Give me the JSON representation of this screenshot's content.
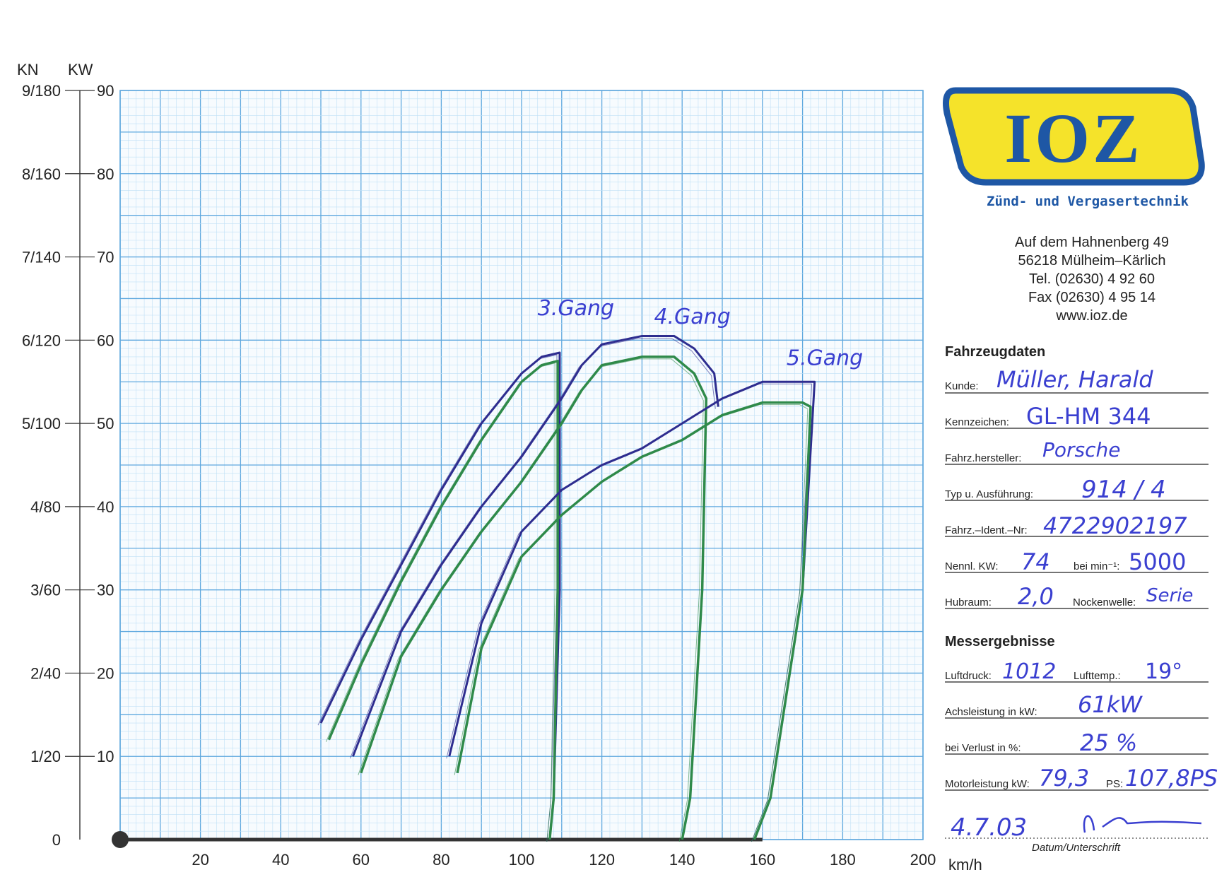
{
  "colors": {
    "grid_major": "#5fa8de",
    "grid_minor": "#bfe0f6",
    "series_blue": "#2e2d8f",
    "series_green": "#2f8a4a",
    "handwriting": "#3a3fd0",
    "logo_yellow": "#f5e32a",
    "logo_blue": "#1e57a5"
  },
  "logo": {
    "name": "IOZ",
    "tagline": "Zünd- und Vergasertechnik"
  },
  "address": {
    "street": "Auf dem Hahnenberg 49",
    "city": "56218 Mülheim–Kärlich",
    "tel": "Tel.  (02630) 4 92 60",
    "fax": "Fax  (02630) 4 95 14",
    "web": "www.ioz.de"
  },
  "vehicle_section": {
    "title": "Fahrzeugdaten",
    "kunde_label": "Kunde:",
    "kunde": "Müller, Harald",
    "kennzeichen_label": "Kennzeichen:",
    "kennzeichen": "GL-HM 344",
    "hersteller_label": "Fahrz.hersteller:",
    "hersteller": "Porsche",
    "typ_label": "Typ u. Ausführung:",
    "typ": "914 / 4",
    "ident_label": "Fahrz.–Ident.–Nr:",
    "ident": "4722902197",
    "kw_label": "Nennl. KW:",
    "kw": "74",
    "rpm_label": "bei min⁻¹:",
    "rpm": "5000",
    "hubraum_label": "Hubraum:",
    "hubraum": "2,0",
    "nocken_label": "Nockenwelle:",
    "nocken": "Serie"
  },
  "results_section": {
    "title": "Messergebnisse",
    "druck_label": "Luftdruck:",
    "druck": "1012",
    "temp_label": "Lufttemp.:",
    "temp": "19°",
    "achs_label": "Achsleistung in kW:",
    "achs": "61kW",
    "verlust_label": "bei Verlust in %:",
    "verlust": "25 %",
    "motor_label": "Motorleistung kW:",
    "motor": "79,3",
    "ps_label": "PS:",
    "ps": "107,8PS",
    "datum": "4.7.03",
    "datum_label": "Datum/Unterschrift"
  },
  "chart_data": {
    "type": "line",
    "title": "",
    "xlabel": "km/h",
    "ylabel_left": "KN",
    "ylabel_right": "KW",
    "xlim": [
      0,
      200
    ],
    "ylim": [
      0,
      90
    ],
    "x_ticks": [
      "20",
      "40",
      "60",
      "80",
      "100",
      "120",
      "140",
      "160",
      "180",
      "200"
    ],
    "y_ticks_kw": [
      "10",
      "20",
      "30",
      "40",
      "50",
      "60",
      "70",
      "80",
      "90"
    ],
    "y_ticks_kn": [
      "0",
      "1/20",
      "2/40",
      "3/60",
      "4/80",
      "5/100",
      "6/120",
      "7/140",
      "8/160",
      "9/180"
    ],
    "grid": true,
    "annotations": [
      {
        "text": "3.Gang",
        "x": 104,
        "y": 63
      },
      {
        "text": "4.Gang",
        "x": 133,
        "y": 62
      },
      {
        "text": "5.Gang",
        "x": 166,
        "y": 57
      }
    ],
    "series": [
      {
        "color": "blue",
        "x": [
          50,
          60,
          70,
          80,
          90,
          100,
          105,
          109.5,
          109.5,
          108,
          107
        ],
        "y": [
          14,
          24,
          33,
          42,
          50,
          56,
          58,
          58.5,
          30,
          5,
          0
        ]
      },
      {
        "color": "green",
        "x": [
          52,
          60,
          70,
          80,
          90,
          100,
          105,
          109,
          109,
          108,
          107
        ],
        "y": [
          12,
          21,
          31,
          40,
          48,
          55,
          57,
          57.5,
          30,
          5,
          0
        ]
      },
      {
        "color": "blue",
        "x": [
          58,
          70,
          80,
          90,
          100,
          110,
          115,
          120,
          130,
          138,
          143,
          148,
          149
        ],
        "y": [
          10,
          25,
          33,
          40,
          46,
          53,
          57,
          59.5,
          60.5,
          60.5,
          59,
          56,
          52
        ]
      },
      {
        "color": "green",
        "x": [
          60,
          70,
          80,
          90,
          100,
          110,
          115,
          120,
          130,
          138,
          143,
          146,
          145,
          142,
          140
        ],
        "y": [
          8,
          22,
          30,
          37,
          43,
          50,
          54,
          57,
          58,
          58,
          56,
          53,
          30,
          5,
          0
        ]
      },
      {
        "color": "blue",
        "x": [
          82,
          90,
          100,
          110,
          120,
          130,
          140,
          150,
          160,
          170,
          173,
          170,
          162,
          158
        ],
        "y": [
          10,
          26,
          37,
          42,
          45,
          47,
          50,
          53,
          55,
          55,
          55,
          30,
          5,
          0
        ]
      },
      {
        "color": "green",
        "x": [
          84,
          90,
          100,
          110,
          120,
          130,
          140,
          150,
          160,
          170,
          172,
          170,
          162,
          158
        ],
        "y": [
          8,
          23,
          34,
          39,
          43,
          46,
          48,
          51,
          52.5,
          52.5,
          52,
          30,
          5,
          0
        ]
      }
    ]
  }
}
